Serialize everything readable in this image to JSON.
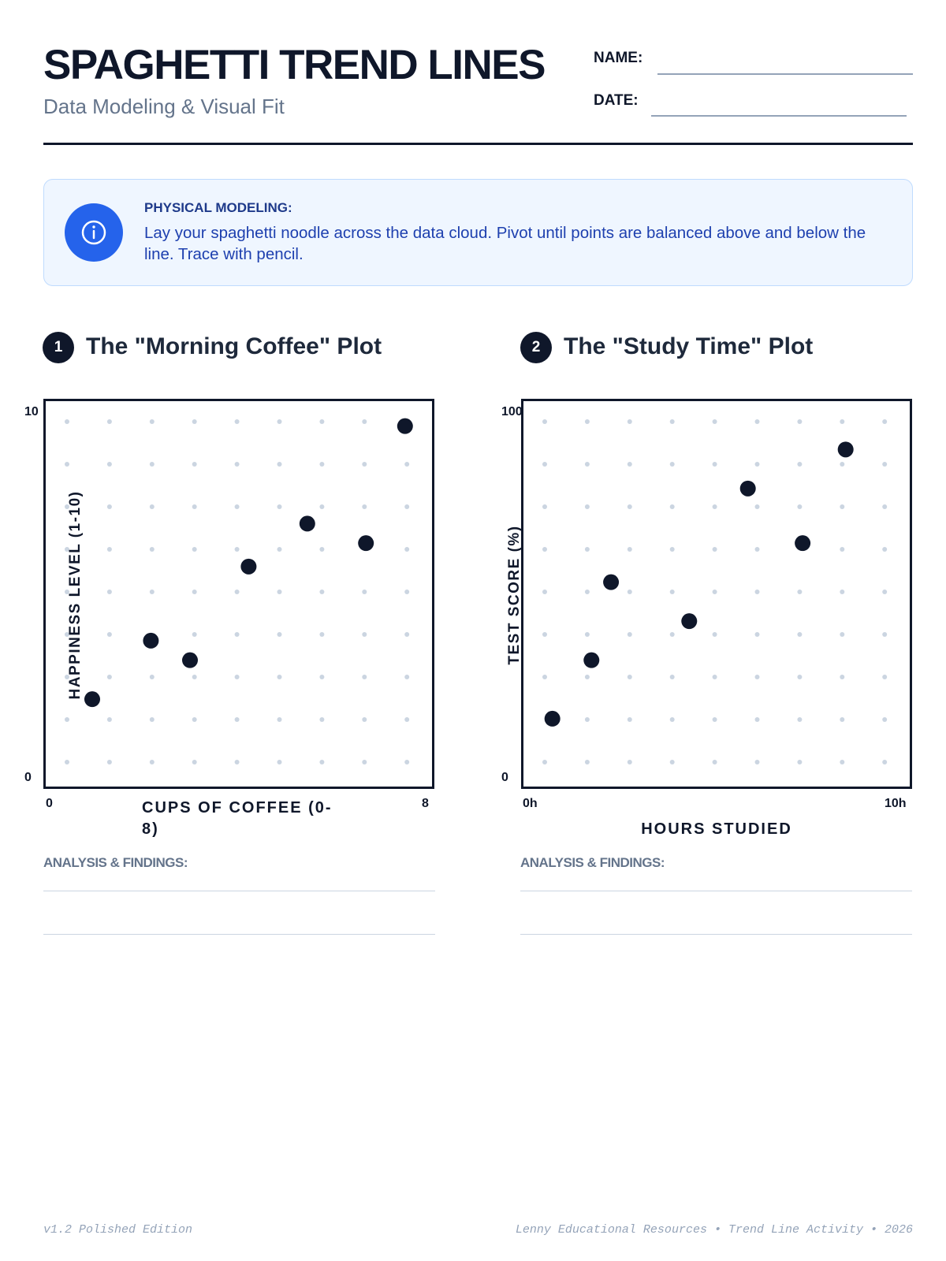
{
  "header": {
    "title": "SPAGHETTI TREND LINES",
    "subtitle": "Data Modeling & Visual Fit",
    "name_label": "NAME:",
    "date_label": "DATE:"
  },
  "info": {
    "icon": "info-icon",
    "heading": "PHYSICAL MODELING:",
    "body": "Lay your spaghetti noodle across the data cloud. Pivot until points are balanced above and below the line. Trace with pencil."
  },
  "sections": [
    {
      "number": "1",
      "title": "The \"Morning Coffee\" Plot",
      "analysis_label": "ANALYSIS & FINDINGS:"
    },
    {
      "number": "2",
      "title": "The \"Study Time\" Plot",
      "analysis_label": "ANALYSIS & FINDINGS:"
    }
  ],
  "chart_data": [
    {
      "type": "scatter",
      "xlabel": "CUPS OF COFFEE (0-8)",
      "ylabel": "HAPPINESS LEVEL (1-10)",
      "xlim": [
        0,
        8
      ],
      "ylim": [
        0,
        10
      ],
      "x_ticks": [
        "0",
        "8"
      ],
      "y_ticks": [
        "10",
        "0"
      ],
      "grid": "dot-grid",
      "point_color": "#0f172a",
      "x": [
        1.0,
        2.2,
        3.0,
        4.2,
        5.4,
        6.6,
        7.4
      ],
      "y": [
        2.3,
        3.8,
        3.3,
        5.7,
        6.8,
        6.3,
        9.3
      ]
    },
    {
      "type": "scatter",
      "xlabel": "HOURS STUDIED",
      "ylabel": "TEST SCORE (%)",
      "xlim": [
        0,
        10
      ],
      "ylim": [
        0,
        100
      ],
      "x_ticks": [
        "0h",
        "10h"
      ],
      "y_ticks": [
        "100",
        "0"
      ],
      "grid": "dot-grid",
      "point_color": "#0f172a",
      "x": [
        0.8,
        1.8,
        2.3,
        4.3,
        5.8,
        7.2,
        8.3
      ],
      "y": [
        18,
        33,
        53,
        43,
        77,
        63,
        87
      ]
    }
  ],
  "footer": {
    "left": "v1.2 Polished Edition",
    "right": "Lenny Educational Resources • Trend Line Activity • 2026"
  }
}
